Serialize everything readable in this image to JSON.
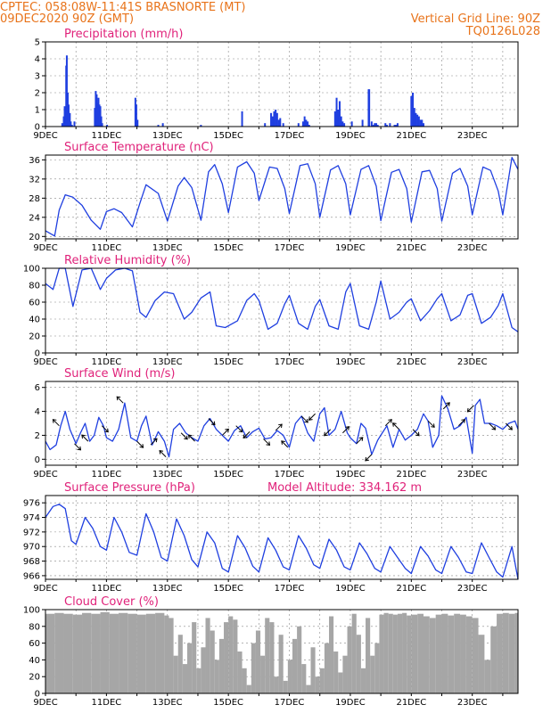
{
  "header": {
    "line1_left": "CPTEC:   058:08W-11:41S   BRASNORTE (MT)",
    "line2_left": "09DEC2020 90Z (GMT)",
    "line1_right": "Vertical Grid Line: 90Z",
    "line2_right": "TQ0126L028"
  },
  "colors": {
    "header": "#e8731a",
    "panel_title": "#e0227a",
    "series": "#1f3fe0",
    "wind_arrow": "#000000",
    "cloud_fill": "#a6a6a6",
    "grid": "#888888"
  },
  "chart_data": [
    {
      "id": "precip",
      "type": "bar",
      "title": "Precipitation (mm/h)",
      "xlabel": "",
      "ylabel": "",
      "ylim": [
        0,
        5
      ],
      "yticks": [
        0,
        1,
        2,
        3,
        4,
        5
      ],
      "xlim": [
        9,
        24.5
      ],
      "xticks": [
        "9DEC",
        "11DEC",
        "13DEC",
        "15DEC",
        "17DEC",
        "19DEC",
        "21DEC",
        "23DEC"
      ],
      "grid": true,
      "x_day": [
        9.55,
        9.6,
        9.63,
        9.68,
        9.7,
        9.73,
        9.76,
        9.8,
        9.83,
        9.87,
        9.95,
        10.62,
        10.65,
        10.68,
        10.71,
        10.74,
        10.77,
        10.8,
        10.83,
        10.86,
        11.02,
        11.95,
        11.98,
        12.02,
        12.7,
        12.85,
        14.1,
        15.45,
        16.2,
        16.4,
        16.45,
        16.5,
        16.55,
        16.6,
        16.65,
        16.7,
        16.8,
        17.3,
        17.45,
        17.5,
        17.55,
        17.6,
        17.65,
        18.5,
        18.55,
        18.6,
        18.65,
        18.7,
        18.75,
        18.8,
        19.05,
        19.4,
        19.6,
        19.62,
        19.7,
        19.75,
        19.8,
        19.85,
        19.9,
        20.15,
        20.2,
        20.3,
        20.45,
        20.5,
        20.55,
        21.0,
        21.05,
        21.1,
        21.15,
        21.2,
        21.25,
        21.3,
        21.35,
        21.4
      ],
      "values": [
        0.2,
        0.6,
        1.2,
        3.6,
        4.2,
        2.0,
        1.3,
        0.8,
        0.3,
        0.1,
        0.3,
        1.1,
        2.1,
        1.9,
        1.4,
        1.7,
        1.3,
        1.2,
        0.6,
        0.2,
        0.1,
        1.7,
        1.3,
        0.4,
        0.1,
        0.2,
        0.1,
        0.9,
        0.2,
        0.8,
        0.6,
        0.9,
        1.0,
        0.8,
        0.4,
        0.5,
        0.2,
        0.2,
        0.3,
        0.6,
        0.4,
        0.3,
        0.1,
        0.9,
        1.7,
        1.0,
        1.5,
        0.6,
        0.3,
        0.2,
        0.3,
        0.4,
        2.2,
        2.2,
        0.3,
        0.1,
        0.2,
        0.2,
        0.1,
        0.2,
        0.1,
        0.2,
        0.1,
        0.1,
        0.2,
        1.8,
        2.0,
        1.1,
        0.8,
        0.7,
        0.6,
        0.4,
        0.4,
        0.2
      ]
    },
    {
      "id": "temp",
      "type": "line",
      "title": "Surface Temperature (nC)",
      "xlabel": "",
      "ylabel": "",
      "ylim": [
        19.5,
        37
      ],
      "yticks": [
        20,
        24,
        28,
        32,
        36
      ],
      "xlim": [
        9,
        24.5
      ],
      "xticks": [
        "9DEC",
        "11DEC",
        "13DEC",
        "15DEC",
        "17DEC",
        "19DEC",
        "21DEC",
        "23DEC"
      ],
      "grid": true,
      "x_day": [
        9.0,
        9.3,
        9.45,
        9.65,
        9.9,
        10.2,
        10.5,
        10.8,
        11.0,
        11.25,
        11.5,
        11.85,
        12.1,
        12.3,
        12.7,
        13.0,
        13.35,
        13.55,
        13.8,
        14.1,
        14.35,
        14.55,
        14.8,
        15.0,
        15.3,
        15.6,
        15.85,
        16.0,
        16.35,
        16.6,
        16.85,
        17.0,
        17.35,
        17.6,
        17.85,
        18.0,
        18.35,
        18.6,
        18.85,
        19.0,
        19.35,
        19.6,
        19.85,
        20.0,
        20.35,
        20.6,
        20.85,
        21.0,
        21.35,
        21.6,
        21.85,
        22.0,
        22.35,
        22.6,
        22.85,
        23.0,
        23.35,
        23.6,
        23.85,
        24.0,
        24.3,
        24.5
      ],
      "values": [
        21.2,
        20.1,
        25.5,
        28.7,
        28.2,
        26.5,
        23.4,
        21.5,
        25.2,
        25.8,
        25.0,
        22.0,
        27.0,
        30.8,
        29.0,
        23.2,
        30.5,
        32.3,
        30.2,
        23.4,
        33.5,
        35.0,
        31.0,
        25.0,
        34.5,
        35.6,
        33.2,
        27.5,
        34.5,
        34.2,
        30.0,
        24.8,
        34.8,
        35.2,
        31.0,
        24.0,
        33.9,
        34.8,
        31.0,
        24.5,
        34.0,
        34.8,
        30.5,
        23.3,
        33.4,
        34.0,
        30.0,
        23.0,
        33.5,
        33.8,
        30.0,
        23.2,
        33.2,
        34.2,
        30.5,
        24.5,
        34.5,
        33.8,
        29.5,
        24.5,
        36.5,
        34.0
      ]
    },
    {
      "id": "rh",
      "type": "line",
      "title": "Relative Humidity (%)",
      "xlabel": "",
      "ylabel": "",
      "ylim": [
        0,
        100
      ],
      "yticks": [
        0,
        20,
        40,
        60,
        80,
        100
      ],
      "xlim": [
        9,
        24.5
      ],
      "xticks": [
        "9DEC",
        "11DEC",
        "13DEC",
        "15DEC",
        "17DEC",
        "19DEC",
        "21DEC",
        "23DEC"
      ],
      "grid": true,
      "x_day": [
        9.0,
        9.25,
        9.45,
        9.65,
        9.9,
        10.2,
        10.5,
        10.8,
        11.0,
        11.3,
        11.6,
        11.85,
        12.1,
        12.3,
        12.6,
        12.9,
        13.2,
        13.55,
        13.8,
        14.1,
        14.4,
        14.6,
        14.9,
        15.3,
        15.6,
        15.85,
        16.0,
        16.3,
        16.6,
        16.85,
        17.0,
        17.3,
        17.6,
        17.85,
        18.0,
        18.3,
        18.6,
        18.85,
        19.0,
        19.3,
        19.6,
        19.85,
        20.0,
        20.3,
        20.6,
        20.85,
        21.0,
        21.3,
        21.6,
        21.85,
        22.0,
        22.3,
        22.6,
        22.85,
        23.0,
        23.3,
        23.6,
        23.85,
        24.0,
        24.3,
        24.5
      ],
      "values": [
        82,
        75,
        100,
        100,
        55,
        98,
        100,
        75,
        88,
        98,
        100,
        97,
        48,
        42,
        62,
        72,
        70,
        40,
        48,
        65,
        72,
        32,
        30,
        38,
        62,
        70,
        62,
        28,
        35,
        58,
        68,
        35,
        28,
        55,
        63,
        32,
        28,
        72,
        82,
        32,
        28,
        60,
        85,
        40,
        48,
        60,
        64,
        38,
        50,
        64,
        70,
        38,
        45,
        68,
        70,
        35,
        42,
        56,
        70,
        30,
        25
      ]
    },
    {
      "id": "wind",
      "type": "line",
      "title": "Surface Wind (m/s)",
      "xlabel": "",
      "ylabel": "",
      "ylim": [
        -0.5,
        6.5
      ],
      "yticks": [
        0,
        2,
        4,
        6
      ],
      "xlim": [
        9,
        24.5
      ],
      "xticks": [
        "9DEC",
        "11DEC",
        "13DEC",
        "15DEC",
        "17DEC",
        "19DEC",
        "21DEC",
        "23DEC"
      ],
      "grid": true,
      "x_day": [
        9.0,
        9.15,
        9.35,
        9.5,
        9.65,
        9.8,
        10.0,
        10.15,
        10.3,
        10.45,
        10.6,
        10.75,
        10.9,
        11.0,
        11.2,
        11.4,
        11.6,
        11.8,
        12.0,
        12.15,
        12.3,
        12.5,
        12.7,
        12.9,
        13.05,
        13.2,
        13.4,
        13.6,
        13.8,
        14.0,
        14.2,
        14.4,
        14.6,
        14.8,
        15.0,
        15.2,
        15.4,
        15.6,
        15.8,
        16.0,
        16.2,
        16.4,
        16.6,
        16.8,
        17.0,
        17.2,
        17.4,
        17.6,
        17.8,
        18.0,
        18.15,
        18.3,
        18.5,
        18.7,
        18.9,
        19.0,
        19.2,
        19.35,
        19.5,
        19.7,
        19.9,
        20.0,
        20.2,
        20.4,
        20.6,
        20.8,
        21.0,
        21.2,
        21.4,
        21.55,
        21.7,
        21.9,
        22.0,
        22.2,
        22.4,
        22.6,
        22.8,
        23.0,
        23.1,
        23.25,
        23.4,
        23.6,
        23.8,
        24.0,
        24.2,
        24.4,
        24.5
      ],
      "values": [
        1.5,
        0.8,
        1.2,
        2.8,
        4.0,
        2.5,
        1.3,
        2.2,
        3.0,
        1.5,
        2.0,
        3.5,
        2.8,
        1.8,
        1.5,
        2.5,
        4.7,
        1.8,
        1.5,
        2.8,
        3.6,
        1.2,
        2.3,
        1.5,
        0.2,
        2.5,
        3.0,
        2.2,
        1.8,
        1.5,
        2.8,
        3.4,
        2.5,
        2.0,
        1.5,
        2.4,
        2.8,
        1.8,
        2.3,
        2.6,
        1.7,
        1.8,
        2.4,
        2.0,
        1.0,
        3.0,
        3.6,
        2.2,
        1.5,
        3.8,
        4.3,
        2.0,
        2.5,
        4.0,
        2.2,
        1.8,
        1.3,
        3.0,
        2.6,
        0.4,
        1.6,
        2.0,
        2.8,
        1.0,
        2.5,
        1.6,
        2.0,
        2.5,
        3.8,
        3.2,
        1.0,
        2.0,
        5.3,
        4.2,
        2.5,
        2.8,
        3.5,
        0.5,
        4.5,
        5.0,
        3.0,
        3.0,
        2.8,
        2.5,
        3.0,
        3.2,
        2.5
      ]
    },
    {
      "id": "pressure",
      "type": "line",
      "title": "Surface Pressure (hPa)",
      "annotation": "Model Altitude: 334.162 m",
      "xlabel": "",
      "ylabel": "",
      "ylim": [
        965.5,
        977
      ],
      "yticks": [
        966,
        968,
        970,
        972,
        974,
        976
      ],
      "xlim": [
        9,
        24.5
      ],
      "xticks": [
        "9DEC",
        "11DEC",
        "13DEC",
        "15DEC",
        "17DEC",
        "19DEC",
        "21DEC",
        "23DEC"
      ],
      "grid": true,
      "x_day": [
        9.0,
        9.25,
        9.45,
        9.65,
        9.85,
        10.0,
        10.3,
        10.55,
        10.8,
        11.0,
        11.25,
        11.5,
        11.75,
        12.0,
        12.3,
        12.55,
        12.8,
        13.0,
        13.3,
        13.55,
        13.8,
        14.0,
        14.3,
        14.55,
        14.8,
        15.0,
        15.3,
        15.55,
        15.8,
        16.0,
        16.3,
        16.55,
        16.8,
        17.0,
        17.3,
        17.55,
        17.8,
        18.0,
        18.3,
        18.55,
        18.8,
        19.0,
        19.3,
        19.55,
        19.8,
        20.0,
        20.3,
        20.55,
        20.8,
        21.0,
        21.3,
        21.55,
        21.8,
        22.0,
        22.3,
        22.55,
        22.8,
        23.0,
        23.3,
        23.55,
        23.8,
        24.0,
        24.3,
        24.5
      ],
      "values": [
        974.0,
        975.5,
        975.8,
        975.2,
        970.8,
        970.3,
        974.0,
        972.5,
        970.0,
        969.5,
        974.0,
        972.0,
        969.2,
        968.8,
        974.5,
        972.0,
        968.5,
        968.0,
        973.8,
        971.5,
        968.2,
        967.2,
        972.0,
        970.5,
        967.0,
        966.5,
        971.5,
        969.8,
        967.3,
        966.5,
        971.2,
        969.5,
        967.2,
        966.8,
        971.5,
        969.8,
        967.5,
        967.0,
        971.0,
        969.5,
        967.2,
        966.8,
        970.5,
        969.0,
        967.0,
        966.5,
        970.0,
        968.5,
        967.0,
        966.3,
        970.0,
        968.7,
        966.8,
        966.3,
        970.0,
        968.5,
        966.5,
        966.3,
        970.5,
        968.5,
        966.5,
        965.8,
        970.0,
        965.5
      ]
    },
    {
      "id": "cloud",
      "type": "bar",
      "title": "Cloud Cover (%)",
      "xlabel": "",
      "ylabel": "",
      "ylim": [
        0,
        100
      ],
      "yticks": [
        0,
        20,
        40,
        60,
        80,
        100
      ],
      "xlim": [
        9,
        24.5
      ],
      "xticks": [
        "9DEC",
        "11DEC",
        "13DEC",
        "15DEC",
        "17DEC",
        "19DEC",
        "21DEC",
        "23DEC"
      ],
      "grid": true,
      "x_day": [
        9.0,
        9.3,
        9.6,
        9.9,
        10.2,
        10.5,
        10.8,
        11.1,
        11.4,
        11.7,
        12.0,
        12.3,
        12.6,
        12.9,
        13.05,
        13.2,
        13.35,
        13.5,
        13.65,
        13.8,
        13.95,
        14.1,
        14.25,
        14.4,
        14.55,
        14.7,
        14.85,
        15.0,
        15.15,
        15.3,
        15.45,
        15.6,
        15.75,
        15.9,
        16.05,
        16.2,
        16.35,
        16.5,
        16.65,
        16.8,
        16.95,
        17.1,
        17.25,
        17.4,
        17.55,
        17.7,
        17.85,
        18.0,
        18.15,
        18.3,
        18.45,
        18.6,
        18.75,
        18.9,
        19.05,
        19.2,
        19.35,
        19.5,
        19.65,
        19.8,
        19.95,
        20.1,
        20.25,
        20.4,
        20.55,
        20.7,
        20.85,
        21.0,
        21.2,
        21.4,
        21.6,
        21.8,
        22.0,
        22.2,
        22.4,
        22.6,
        22.8,
        23.0,
        23.2,
        23.4,
        23.6,
        23.8,
        24.0,
        24.2,
        24.4
      ],
      "values": [
        95,
        96,
        95,
        94,
        96,
        95,
        97,
        95,
        96,
        95,
        94,
        95,
        96,
        93,
        90,
        45,
        70,
        35,
        60,
        85,
        30,
        55,
        90,
        75,
        40,
        65,
        85,
        92,
        88,
        50,
        30,
        10,
        60,
        75,
        45,
        90,
        85,
        20,
        70,
        15,
        40,
        65,
        80,
        35,
        10,
        55,
        20,
        30,
        60,
        92,
        50,
        25,
        45,
        80,
        95,
        70,
        30,
        90,
        45,
        60,
        94,
        96,
        95,
        94,
        95,
        96,
        93,
        94,
        95,
        92,
        90,
        94,
        95,
        93,
        95,
        94,
        92,
        90,
        70,
        40,
        80,
        95,
        96,
        95,
        96
      ]
    }
  ],
  "wind_vectors": {
    "comment_free": true,
    "x_day": [
      9.45,
      9.95,
      10.4,
      10.85,
      11.55,
      12.0,
      12.45,
      12.95,
      13.45,
      13.9,
      14.35,
      14.8,
      15.25,
      15.7,
      16.15,
      16.55,
      16.95,
      17.4,
      17.85,
      18.35,
      18.75,
      19.2,
      19.7,
      20.15,
      20.6,
      21.05,
      21.55,
      22.05,
      22.55,
      23.05,
      23.55,
      24.1
    ],
    "u": [
      -1,
      1,
      -1,
      1,
      -1,
      1,
      1,
      -1,
      1,
      -1,
      1,
      1,
      1,
      -1,
      1,
      1,
      -1,
      1,
      -1,
      -1,
      1,
      1,
      -1,
      1,
      -1,
      1,
      1,
      1,
      1,
      -1,
      1,
      1
    ],
    "v": [
      1,
      -1,
      1,
      -1,
      1,
      -1,
      1,
      1,
      -1,
      1,
      -1,
      1,
      -1,
      -1,
      -1,
      1,
      1,
      -1,
      -1,
      -1,
      1,
      1,
      -1,
      1,
      1,
      -1,
      -1,
      1,
      1,
      -1,
      -1,
      -1
    ]
  }
}
